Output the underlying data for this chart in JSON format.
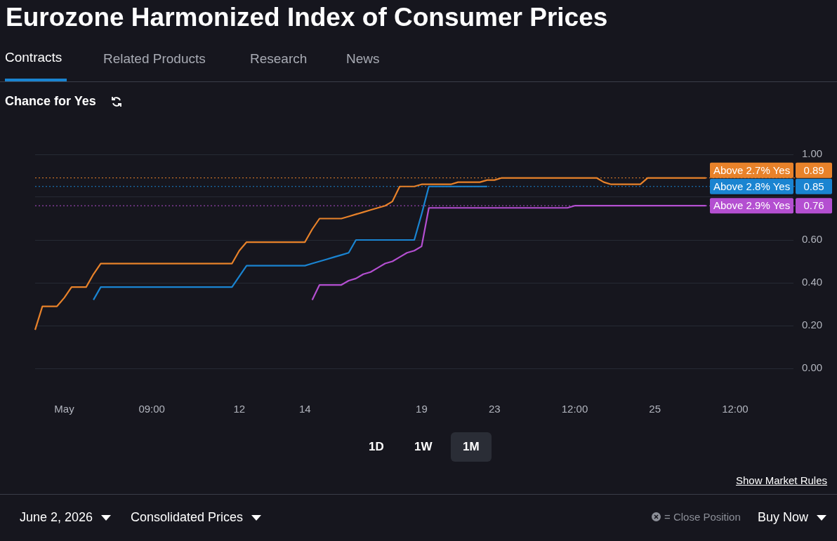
{
  "chart_data": {
    "type": "line",
    "title": "Eurozone Harmonized Index of Consumer Prices",
    "subtitle": "Chance for Yes",
    "categories": [
      null,
      null,
      null,
      null,
      "May",
      null,
      null,
      null,
      null,
      null,
      null,
      null,
      null,
      null,
      null,
      null,
      "09:00",
      null,
      null,
      null,
      null,
      null,
      null,
      null,
      null,
      null,
      null,
      null,
      "12",
      null,
      null,
      null,
      null,
      null,
      null,
      null,
      null,
      "14",
      null,
      null,
      null,
      null,
      null,
      null,
      null,
      null,
      null,
      null,
      null,
      null,
      null,
      null,
      null,
      "19",
      null,
      null,
      null,
      null,
      null,
      null,
      null,
      null,
      null,
      "23",
      null,
      null,
      null,
      null,
      null,
      null,
      null,
      null,
      null,
      null,
      "12:00",
      null,
      null,
      null,
      null,
      null,
      null,
      null,
      null,
      null,
      null,
      "25",
      null,
      null,
      null,
      null,
      null,
      null,
      null,
      null,
      null,
      null,
      "12:00",
      null,
      null,
      null,
      null,
      null,
      null,
      null,
      null
    ],
    "series": [
      {
        "name": "Above 2.7% Yes",
        "color": "#e8822a",
        "values": [
          0.18,
          0.29,
          0.29,
          0.29,
          0.33,
          0.38,
          0.38,
          0.38,
          0.44,
          0.49,
          0.49,
          0.49,
          0.49,
          0.49,
          0.49,
          0.49,
          0.49,
          0.49,
          0.49,
          0.49,
          0.49,
          0.49,
          0.49,
          0.49,
          0.49,
          0.49,
          0.49,
          0.49,
          0.55,
          0.59,
          0.59,
          0.59,
          0.59,
          0.59,
          0.59,
          0.59,
          0.59,
          0.59,
          0.65,
          0.7,
          0.7,
          0.7,
          0.7,
          0.71,
          0.72,
          0.73,
          0.74,
          0.75,
          0.76,
          0.78,
          0.85,
          0.85,
          0.85,
          0.86,
          0.86,
          0.86,
          0.86,
          0.86,
          0.87,
          0.87,
          0.87,
          0.87,
          0.88,
          0.88,
          0.89,
          0.89,
          0.89,
          0.89,
          0.89,
          0.89,
          0.89,
          0.89,
          0.89,
          0.89,
          0.89,
          0.89,
          0.89,
          0.89,
          0.87,
          0.86,
          0.86,
          0.86,
          0.86,
          0.86,
          0.89,
          0.89,
          0.89,
          0.89,
          0.89,
          0.89,
          0.89,
          0.89,
          0.89,
          null,
          null,
          null,
          null,
          null,
          null,
          null,
          null,
          null,
          null,
          null,
          null
        ]
      },
      {
        "name": "Above 2.8% Yes",
        "color": "#1a84d1",
        "values": [
          null,
          null,
          null,
          null,
          null,
          null,
          null,
          null,
          0.32,
          0.38,
          0.38,
          0.38,
          0.38,
          0.38,
          0.38,
          0.38,
          0.38,
          0.38,
          0.38,
          0.38,
          0.38,
          0.38,
          0.38,
          0.38,
          0.38,
          0.38,
          0.38,
          0.38,
          0.43,
          0.48,
          0.48,
          0.48,
          0.48,
          0.48,
          0.48,
          0.48,
          0.48,
          0.48,
          0.49,
          0.5,
          0.51,
          0.52,
          0.53,
          0.54,
          0.6,
          0.6,
          0.6,
          0.6,
          0.6,
          0.6,
          0.6,
          0.6,
          0.6,
          0.72,
          0.85,
          0.85,
          0.85,
          0.85,
          0.85,
          0.85,
          0.85,
          0.85,
          0.85,
          null,
          null,
          null,
          null,
          null,
          null,
          null,
          null,
          null,
          null,
          null,
          null,
          null,
          null,
          null,
          null,
          null,
          null,
          null,
          null,
          null,
          null,
          null,
          null,
          null,
          null,
          null,
          null,
          null,
          null,
          null,
          null,
          null,
          null,
          null,
          null,
          null,
          null,
          null,
          null,
          null,
          null
        ]
      },
      {
        "name": "Above 2.9% Yes",
        "color": "#b44fd1",
        "values": [
          null,
          null,
          null,
          null,
          null,
          null,
          null,
          null,
          null,
          null,
          null,
          null,
          null,
          null,
          null,
          null,
          null,
          null,
          null,
          null,
          null,
          null,
          null,
          null,
          null,
          null,
          null,
          null,
          null,
          null,
          null,
          null,
          null,
          null,
          null,
          null,
          null,
          null,
          0.32,
          0.39,
          0.39,
          0.39,
          0.39,
          0.41,
          0.42,
          0.44,
          0.45,
          0.47,
          0.49,
          0.5,
          0.52,
          0.54,
          0.55,
          0.57,
          0.75,
          0.75,
          0.75,
          0.75,
          0.75,
          0.75,
          0.75,
          0.75,
          0.75,
          0.75,
          0.75,
          0.75,
          0.75,
          0.75,
          0.75,
          0.75,
          0.75,
          0.75,
          0.75,
          0.75,
          0.76,
          0.76,
          0.76,
          0.76,
          0.76,
          0.76,
          0.76,
          0.76,
          0.76,
          0.76,
          0.76,
          0.76,
          0.76,
          0.76,
          0.76,
          0.76,
          0.76,
          0.76,
          0.76,
          null,
          null,
          null,
          null,
          null,
          null,
          null,
          null,
          null,
          null,
          null,
          null
        ]
      }
    ],
    "ylim": [
      0,
      1
    ],
    "yticks": [
      {
        "value": 0,
        "label": "0.00"
      },
      {
        "value": 0.2,
        "label": "0.20"
      },
      {
        "value": 0.4,
        "label": "0.40"
      },
      {
        "value": 0.6,
        "label": "0.60"
      },
      {
        "value": 0.8,
        "label": null
      },
      {
        "value": 1,
        "label": "1.00"
      }
    ],
    "ref_lines": [
      {
        "axis": "y",
        "value": 0.89,
        "label": "0.89",
        "color": "#e8822a",
        "line_style": "dotted"
      },
      {
        "axis": "y",
        "value": 0.85,
        "label": "0.85",
        "color": "#1a84d1",
        "line_style": "dotted"
      },
      {
        "axis": "y",
        "value": 0.76,
        "label": "0.76",
        "color": "#b44fd1",
        "line_style": "dotted"
      }
    ],
    "grid": "y",
    "legend": "right",
    "marker": "none",
    "line_style": "solid",
    "annotations": [
      "Contracts",
      "Related Products",
      "Research",
      "News",
      "1D",
      "1W",
      "1M",
      "Show Market Rules",
      "June 2, 2026",
      "Consolidated Prices",
      "= Close Position",
      "Buy Now"
    ]
  }
}
